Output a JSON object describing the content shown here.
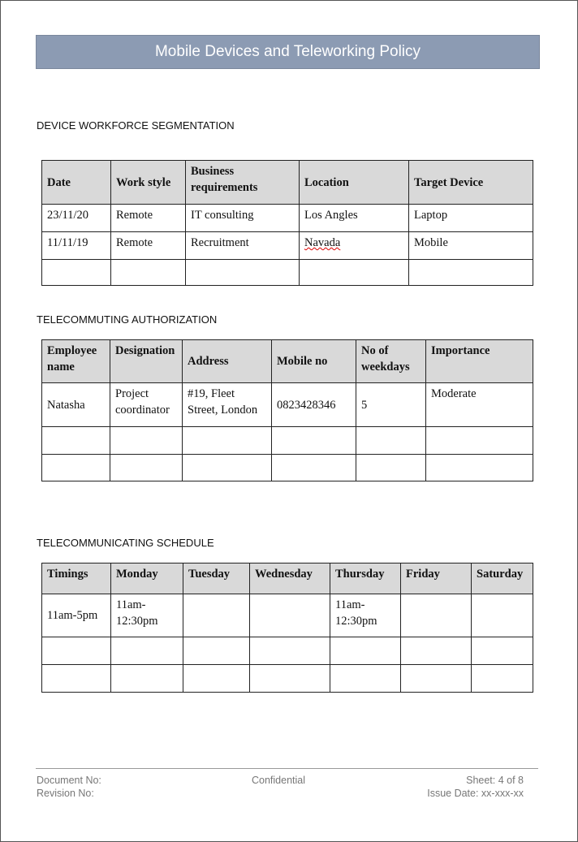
{
  "title": "Mobile Devices and Teleworking Policy",
  "sections": [
    {
      "heading": "DEVICE WORKFORCE SEGMENTATION",
      "headers": [
        "Date",
        "Work style",
        "Business requirements",
        "Location",
        "Target Device"
      ],
      "rows": [
        [
          "23/11/20",
          "Remote",
          " IT consulting",
          "Los Angles",
          "Laptop"
        ],
        [
          "11/11/19",
          "Remote",
          "Recruitment",
          "Navada",
          "Mobile"
        ],
        [
          "",
          "",
          "",
          "",
          ""
        ]
      ]
    },
    {
      "heading": "TELECOMMUTING AUTHORIZATION",
      "headers": [
        "Employee name",
        "Designation",
        "Address",
        "Mobile no",
        "No of weekdays",
        "Importance"
      ],
      "rows": [
        [
          "Natasha",
          "Project coordinator",
          "#19, Fleet Street, London",
          "0823428346",
          "5",
          "Moderate"
        ],
        [
          "",
          "",
          "",
          "",
          "",
          ""
        ],
        [
          "",
          "",
          "",
          "",
          "",
          ""
        ]
      ]
    },
    {
      "heading": "TELECOMMUNICATING SCHEDULE",
      "headers": [
        "Timings",
        "Monday",
        "Tuesday",
        "Wednesday",
        "Thursday",
        "Friday",
        "Saturday"
      ],
      "rows": [
        [
          "11am-5pm",
          "11am-12:30pm",
          "",
          "",
          "11am-12:30pm",
          "",
          ""
        ],
        [
          "",
          "",
          "",
          "",
          "",
          "",
          ""
        ],
        [
          "",
          "",
          "",
          "",
          "",
          "",
          ""
        ]
      ]
    }
  ],
  "footer": {
    "document_no": "Document No:",
    "revision_no": "Revision No:",
    "confidential": "Confidential",
    "sheet": "Sheet: 4 of 8",
    "issue_date": "Issue Date: xx-xxx-xx"
  }
}
